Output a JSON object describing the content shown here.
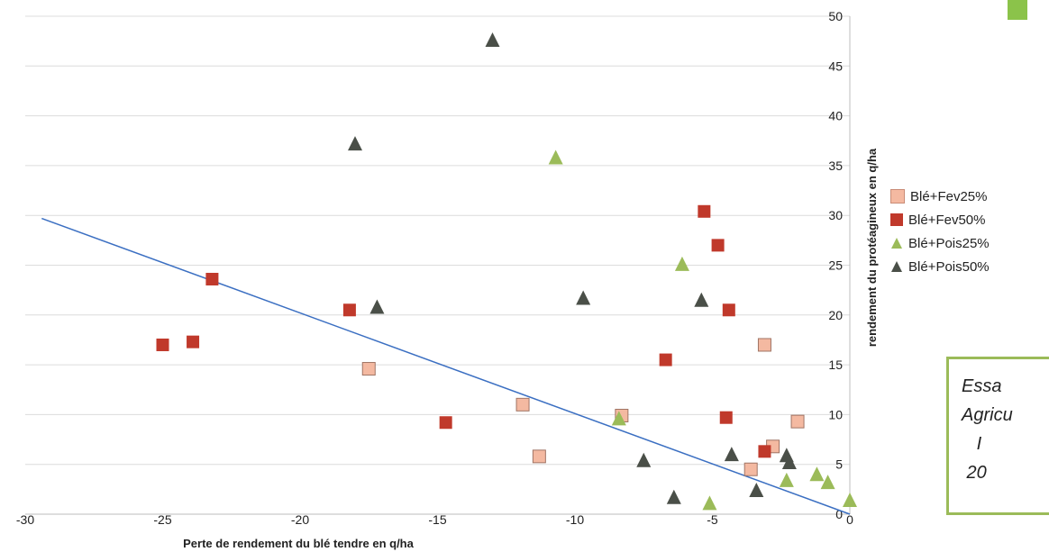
{
  "chart_data": {
    "type": "scatter",
    "title": "",
    "xlabel": "Perte de rendement du blé tendre en q/ha",
    "ylabel": "rendement du protéagineux en q/ha",
    "xlim": [
      -30,
      0
    ],
    "ylim": [
      0,
      50
    ],
    "x_ticks": [
      "-30",
      "-25",
      "-20",
      "-15",
      "-10",
      "-5",
      "0"
    ],
    "y_ticks": [
      "0",
      "5",
      "10",
      "15",
      "20",
      "25",
      "30",
      "35",
      "40",
      "45",
      "50"
    ],
    "grid": "horizontal",
    "legend_position": "right",
    "series": [
      {
        "name": "Blé+Fev25%",
        "marker": "square",
        "color": "#f4b9a1",
        "points": [
          [
            -17.5,
            14.6
          ],
          [
            -11.9,
            11.0
          ],
          [
            -11.3,
            5.8
          ],
          [
            -8.3,
            9.9
          ],
          [
            -3.6,
            4.5
          ],
          [
            -3.1,
            17.0
          ],
          [
            -2.8,
            6.8
          ],
          [
            -1.9,
            9.3
          ]
        ]
      },
      {
        "name": "Blé+Fev50%",
        "marker": "square",
        "color": "#c0392b",
        "points": [
          [
            -25.0,
            17.0
          ],
          [
            -23.9,
            17.3
          ],
          [
            -23.2,
            23.6
          ],
          [
            -18.2,
            20.5
          ],
          [
            -14.7,
            9.2
          ],
          [
            -6.7,
            15.5
          ],
          [
            -5.3,
            30.4
          ],
          [
            -4.8,
            27.0
          ],
          [
            -4.4,
            20.5
          ],
          [
            -4.5,
            9.7
          ],
          [
            -3.1,
            6.3
          ]
        ]
      },
      {
        "name": "Blé+Pois25%",
        "marker": "triangle",
        "color": "#9bbb59",
        "points": [
          [
            -10.7,
            35.8
          ],
          [
            -8.4,
            9.6
          ],
          [
            -6.1,
            25.1
          ],
          [
            -5.1,
            1.1
          ],
          [
            -2.3,
            3.4
          ],
          [
            -1.2,
            4.0
          ],
          [
            -0.8,
            3.2
          ],
          [
            0.0,
            1.4
          ]
        ]
      },
      {
        "name": "Blé+Pois50%",
        "marker": "triangle",
        "color": "#4a4f48",
        "points": [
          [
            -13.0,
            47.6
          ],
          [
            -18.0,
            37.2
          ],
          [
            -17.2,
            20.8
          ],
          [
            -9.7,
            21.7
          ],
          [
            -7.5,
            5.4
          ],
          [
            -6.4,
            1.7
          ],
          [
            -5.4,
            21.5
          ],
          [
            -4.3,
            6.0
          ],
          [
            -3.4,
            2.4
          ],
          [
            -2.3,
            5.9
          ],
          [
            -2.2,
            5.2
          ]
        ]
      }
    ],
    "trendline": {
      "color": "#3b6fc2",
      "from": [
        -29.4,
        29.7
      ],
      "to": [
        0.0,
        0.0
      ]
    }
  },
  "note_text": "Essa\nAgricu\n   I\n 20",
  "title_fragment": "..."
}
